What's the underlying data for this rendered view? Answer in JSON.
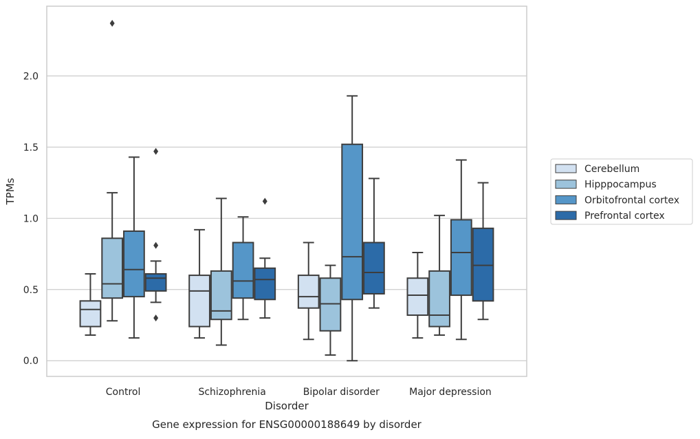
{
  "chart_data": {
    "type": "box",
    "title": "",
    "caption": "Gene expression for ENSG00000188649 by disorder",
    "xlabel": "Disorder",
    "ylabel": "TPMs",
    "ylim": [
      -0.11,
      2.49
    ],
    "yticks": [
      "0.0",
      "0.5",
      "1.0",
      "1.5",
      "2.0"
    ],
    "ytick_values": [
      0.0,
      0.5,
      1.0,
      1.5,
      2.0
    ],
    "grid": "horizontal",
    "legend_position": "right",
    "categories": [
      "Control",
      "Schizophrenia",
      "Bipolar disorder",
      "Major depression"
    ],
    "series": [
      {
        "name": "Cerebellum",
        "color": "#d2e1f1",
        "boxes": [
          {
            "min": 0.18,
            "q1": 0.24,
            "median": 0.36,
            "q3": 0.42,
            "max": 0.61,
            "outliers": []
          },
          {
            "min": 0.16,
            "q1": 0.24,
            "median": 0.49,
            "q3": 0.6,
            "max": 0.92,
            "outliers": []
          },
          {
            "min": 0.15,
            "q1": 0.37,
            "median": 0.45,
            "q3": 0.6,
            "max": 0.83,
            "outliers": []
          },
          {
            "min": 0.16,
            "q1": 0.32,
            "median": 0.46,
            "q3": 0.58,
            "max": 0.76,
            "outliers": []
          }
        ]
      },
      {
        "name": "Hipppocampus",
        "color": "#9cc3dc",
        "boxes": [
          {
            "min": 0.28,
            "q1": 0.44,
            "median": 0.54,
            "q3": 0.86,
            "max": 1.18,
            "outliers": [
              2.37
            ]
          },
          {
            "min": 0.11,
            "q1": 0.29,
            "median": 0.35,
            "q3": 0.63,
            "max": 1.14,
            "outliers": []
          },
          {
            "min": 0.04,
            "q1": 0.21,
            "median": 0.4,
            "q3": 0.58,
            "max": 0.67,
            "outliers": []
          },
          {
            "min": 0.18,
            "q1": 0.24,
            "median": 0.32,
            "q3": 0.63,
            "max": 1.02,
            "outliers": []
          }
        ]
      },
      {
        "name": "Orbitofrontal cortex",
        "color": "#5596c8",
        "boxes": [
          {
            "min": 0.16,
            "q1": 0.45,
            "median": 0.64,
            "q3": 0.91,
            "max": 1.43,
            "outliers": []
          },
          {
            "min": 0.29,
            "q1": 0.44,
            "median": 0.56,
            "q3": 0.83,
            "max": 1.01,
            "outliers": []
          },
          {
            "min": 0.0,
            "q1": 0.43,
            "median": 0.73,
            "q3": 1.52,
            "max": 1.86,
            "outliers": []
          },
          {
            "min": 0.15,
            "q1": 0.46,
            "median": 0.76,
            "q3": 0.99,
            "max": 1.41,
            "outliers": []
          }
        ]
      },
      {
        "name": "Prefrontal cortex",
        "color": "#2c6ba8",
        "boxes": [
          {
            "min": 0.41,
            "q1": 0.49,
            "median": 0.58,
            "q3": 0.61,
            "max": 0.7,
            "outliers": [
              1.47,
              0.81,
              0.3
            ]
          },
          {
            "min": 0.3,
            "q1": 0.43,
            "median": 0.57,
            "q3": 0.65,
            "max": 0.72,
            "outliers": [
              1.12
            ]
          },
          {
            "min": 0.37,
            "q1": 0.47,
            "median": 0.62,
            "q3": 0.83,
            "max": 1.28,
            "outliers": []
          },
          {
            "min": 0.29,
            "q1": 0.42,
            "median": 0.67,
            "q3": 0.93,
            "max": 1.25,
            "outliers": []
          }
        ]
      }
    ]
  }
}
